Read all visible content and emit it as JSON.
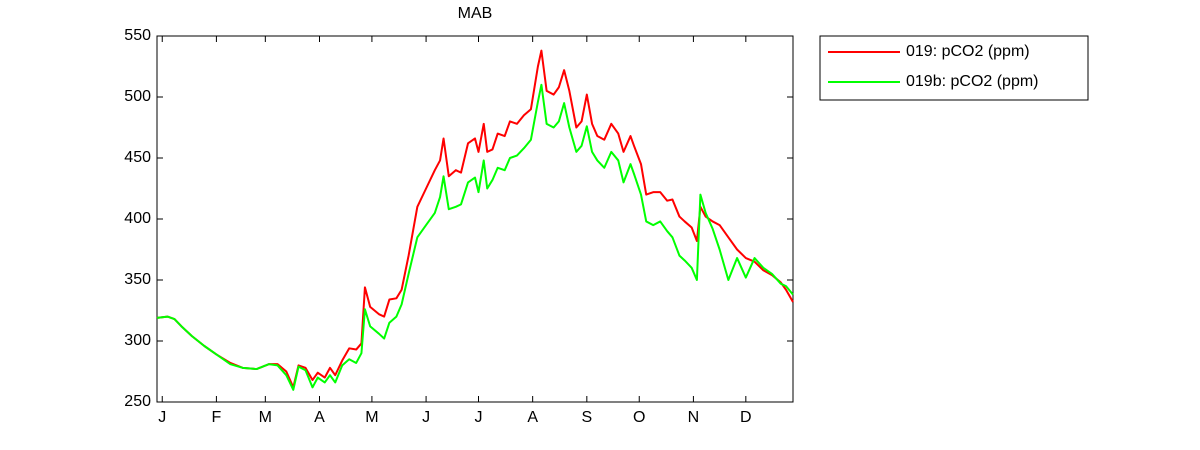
{
  "chart_data": {
    "type": "line",
    "title": "MAB",
    "x": [
      -2,
      4,
      8,
      12,
      18,
      25,
      32,
      40,
      47,
      55,
      62,
      67,
      72,
      76,
      79,
      83,
      87,
      90,
      94,
      97,
      100,
      104,
      108,
      112,
      115,
      117,
      120,
      125,
      128,
      131,
      135,
      138,
      142,
      147,
      152,
      157,
      160,
      162,
      165,
      169,
      172,
      176,
      180,
      182,
      185,
      187,
      190,
      193,
      197,
      200,
      204,
      208,
      212,
      216,
      218,
      221,
      225,
      228,
      231,
      234,
      238,
      241,
      244,
      247,
      250,
      254,
      258,
      262,
      265,
      269,
      271,
      275,
      278,
      282,
      286,
      290,
      293,
      297,
      300,
      304,
      307,
      309,
      312,
      316,
      320,
      325,
      330,
      335,
      340,
      345,
      350,
      355,
      358,
      362
    ],
    "series": [
      {
        "name": "019: pCO2 (ppm)",
        "color": "#ff0000",
        "values": [
          319,
          320,
          318,
          312,
          304,
          296,
          289,
          282,
          278,
          277,
          281,
          281,
          275,
          262,
          280,
          278,
          268,
          274,
          270,
          278,
          272,
          284,
          294,
          293,
          298,
          344,
          328,
          322,
          320,
          334,
          335,
          342,
          370,
          410,
          425,
          440,
          448,
          466,
          435,
          440,
          438,
          462,
          466,
          455,
          478,
          455,
          457,
          470,
          468,
          480,
          478,
          485,
          490,
          525,
          538,
          505,
          502,
          508,
          522,
          505,
          475,
          480,
          502,
          478,
          468,
          465,
          478,
          470,
          455,
          468,
          460,
          445,
          420,
          422,
          422,
          415,
          416,
          402,
          398,
          393,
          382,
          410,
          402,
          398,
          395,
          385,
          375,
          368,
          365,
          358,
          354,
          348,
          342,
          332
        ]
      },
      {
        "name": "019b: pCO2 (ppm)",
        "color": "#00ff00",
        "values": [
          319,
          320,
          318,
          312,
          304,
          296,
          289,
          281,
          278,
          277,
          281,
          280,
          272,
          260,
          279,
          276,
          262,
          270,
          266,
          272,
          266,
          280,
          285,
          282,
          290,
          326,
          312,
          306,
          302,
          315,
          320,
          330,
          355,
          385,
          395,
          405,
          418,
          435,
          408,
          410,
          412,
          430,
          434,
          422,
          448,
          425,
          432,
          442,
          440,
          450,
          452,
          458,
          465,
          496,
          510,
          478,
          475,
          480,
          495,
          475,
          455,
          460,
          476,
          455,
          448,
          442,
          455,
          448,
          430,
          445,
          437,
          420,
          398,
          395,
          398,
          390,
          385,
          370,
          366,
          360,
          350,
          420,
          405,
          392,
          375,
          350,
          368,
          352,
          368,
          360,
          355,
          347,
          345,
          338
        ]
      }
    ],
    "xlim": [
      -2,
      362
    ],
    "xticks": [
      {
        "value": 1,
        "label": "J"
      },
      {
        "value": 32,
        "label": "F"
      },
      {
        "value": 60,
        "label": "M"
      },
      {
        "value": 91,
        "label": "A"
      },
      {
        "value": 121,
        "label": "M"
      },
      {
        "value": 152,
        "label": "J"
      },
      {
        "value": 182,
        "label": "J"
      },
      {
        "value": 213,
        "label": "A"
      },
      {
        "value": 244,
        "label": "S"
      },
      {
        "value": 274,
        "label": "O"
      },
      {
        "value": 305,
        "label": "N"
      },
      {
        "value": 335,
        "label": "D"
      }
    ],
    "ylim": [
      250,
      550
    ],
    "yticks": [
      250,
      300,
      350,
      400,
      450,
      500,
      550
    ],
    "grid": false,
    "legend": "outside-northeast"
  }
}
